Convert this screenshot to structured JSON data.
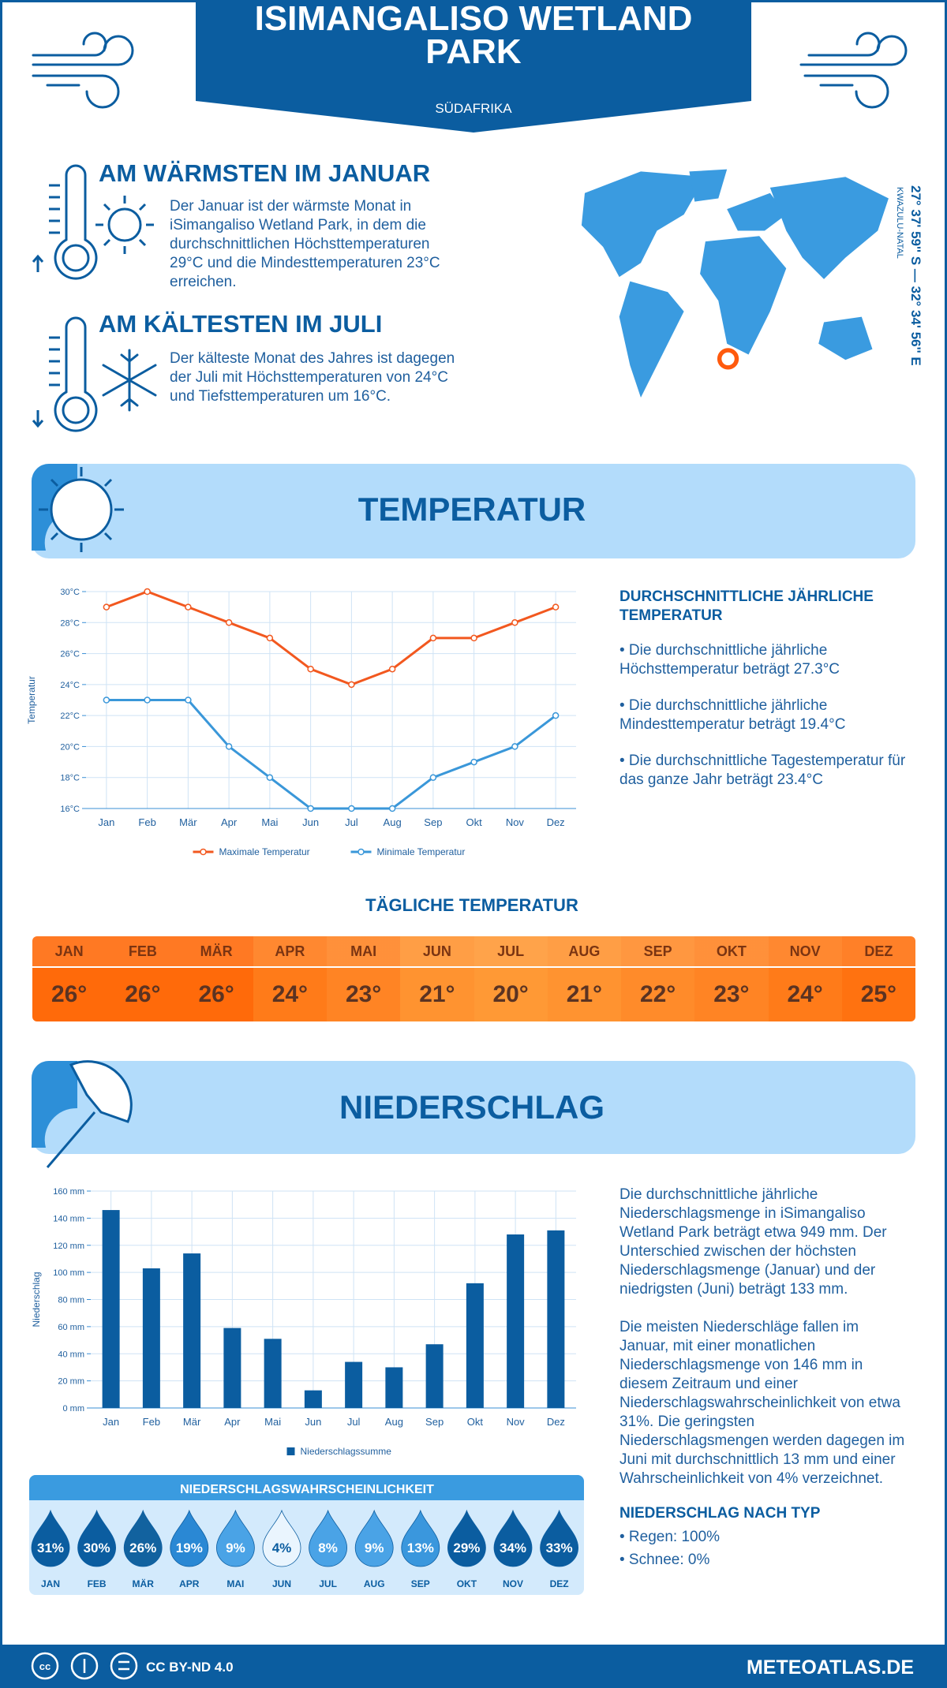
{
  "header": {
    "title": "ISIMANGALISO WETLAND PARK",
    "subtitle": "SÜDAFRIKA"
  },
  "warmest": {
    "title": "AM WÄRMSTEN IM JANUAR",
    "text": "Der Januar ist der wärmste Monat in iSimangaliso Wetland Park, in dem die durchschnittlichen Höchsttemperaturen 29°C und die Mindesttemperaturen 23°C erreichen."
  },
  "coldest": {
    "title": "AM KÄLTESTEN IM JULI",
    "text": "Der kälteste Monat des Jahres ist dagegen der Juli mit Höchsttemperaturen von 24°C und Tiefsttemperaturen um 16°C."
  },
  "location": {
    "coordinates": "27° 37' 59'' S — 32° 34' 56'' E",
    "region": "KWAZULU-NATAL"
  },
  "temperature_section": {
    "title": "TEMPERATUR",
    "annual": {
      "title": "DURCHSCHNITTLICHE JÄHRLICHE TEMPERATUR",
      "items": [
        "• Die durchschnittliche jährliche Höchsttemperatur beträgt 27.3°C",
        "• Die durchschnittliche jährliche Mindesttemperatur beträgt 19.4°C",
        "• Die durchschnittliche Tagestemperatur für das ganze Jahr beträgt 23.4°C"
      ]
    }
  },
  "daily_temperature": {
    "title": "TÄGLICHE TEMPERATUR",
    "months": [
      "JAN",
      "FEB",
      "MÄR",
      "APR",
      "MAI",
      "JUN",
      "JUL",
      "AUG",
      "SEP",
      "OKT",
      "NOV",
      "DEZ"
    ],
    "values": [
      "26°",
      "26°",
      "26°",
      "24°",
      "23°",
      "21°",
      "20°",
      "21°",
      "22°",
      "23°",
      "24°",
      "25°"
    ],
    "colors": [
      "#ff6a0a",
      "#ff6a0a",
      "#ff6a0a",
      "#ff7b19",
      "#ff8424",
      "#ff9330",
      "#ff9935",
      "#ff9330",
      "#ff8b2a",
      "#ff8424",
      "#ff7b19",
      "#ff7210"
    ]
  },
  "precipitation_section": {
    "title": "NIEDERSCHLAG",
    "paragraphs": [
      "Die durchschnittliche jährliche Niederschlagsmenge in iSimangaliso Wetland Park beträgt etwa 949 mm. Der Unterschied zwischen der höchsten Niederschlagsmenge (Januar) und der niedrigsten (Juni) beträgt 133 mm.",
      "Die meisten Niederschläge fallen im Januar, mit einer monatlichen Niederschlagsmenge von 146 mm in diesem Zeitraum und einer Niederschlagswahrscheinlichkeit von etwa 31%. Die geringsten Niederschlagsmengen werden dagegen im Juni mit durchschnittlich 13 mm und einer Wahrscheinlichkeit von 4% verzeichnet."
    ],
    "type_title": "NIEDERSCHLAG NACH TYP",
    "types": [
      "• Regen: 100%",
      "• Schnee: 0%"
    ]
  },
  "probability": {
    "title": "NIEDERSCHLAGSWAHRSCHEINLICHKEIT",
    "months": [
      "JAN",
      "FEB",
      "MÄR",
      "APR",
      "MAI",
      "JUN",
      "JUL",
      "AUG",
      "SEP",
      "OKT",
      "NOV",
      "DEZ"
    ],
    "values": [
      "31%",
      "30%",
      "26%",
      "19%",
      "9%",
      "4%",
      "8%",
      "9%",
      "13%",
      "29%",
      "34%",
      "33%"
    ],
    "colors": [
      "#0b5da0",
      "#0b5da0",
      "#12629f",
      "#2a88d4",
      "#4aa3e6",
      "#eaf5fe",
      "#4aa3e6",
      "#4aa3e6",
      "#3a97dd",
      "#0b5da0",
      "#0b5da0",
      "#0b5da0"
    ],
    "label_colors": [
      "#ffffff",
      "#ffffff",
      "#ffffff",
      "#ffffff",
      "#ffffff",
      "#0b5da0",
      "#ffffff",
      "#ffffff",
      "#ffffff",
      "#ffffff",
      "#ffffff",
      "#ffffff"
    ]
  },
  "footer": {
    "license": "CC BY-ND 4.0",
    "site": "METEOATLAS.DE"
  },
  "chart_data": [
    {
      "type": "line",
      "y_label": "Temperatur",
      "categories": [
        "Jan",
        "Feb",
        "Mär",
        "Apr",
        "Mai",
        "Jun",
        "Jul",
        "Aug",
        "Sep",
        "Okt",
        "Nov",
        "Dez"
      ],
      "series": [
        {
          "name": "Maximale Temperatur",
          "color": "#f2581f",
          "values": [
            29,
            30,
            29,
            28,
            27,
            25,
            24,
            25,
            27,
            27,
            28,
            29
          ]
        },
        {
          "name": "Minimale Temperatur",
          "color": "#3a97d9",
          "values": [
            23,
            23,
            23,
            20,
            18,
            16,
            16,
            16,
            18,
            19,
            20,
            22
          ]
        }
      ],
      "ylim": [
        16,
        30
      ],
      "yticks": [
        {
          "value": 16,
          "label": "16°C"
        },
        {
          "value": 18,
          "label": "18°C"
        },
        {
          "value": 20,
          "label": "20°C"
        },
        {
          "value": 22,
          "label": "22°C"
        },
        {
          "value": 24,
          "label": "24°C"
        },
        {
          "value": 26,
          "label": "26°C"
        },
        {
          "value": 28,
          "label": "28°C"
        },
        {
          "value": 30,
          "label": "30°C"
        }
      ],
      "grid": true,
      "legend": "bottom"
    },
    {
      "type": "bar",
      "y_label": "Niederschlag",
      "categories": [
        "Jan",
        "Feb",
        "Mär",
        "Apr",
        "Mai",
        "Jun",
        "Jul",
        "Aug",
        "Sep",
        "Okt",
        "Nov",
        "Dez"
      ],
      "series": [
        {
          "name": "Niederschlagssumme",
          "color": "#0b5da0",
          "values": [
            146,
            103,
            114,
            59,
            51,
            13,
            34,
            30,
            47,
            92,
            128,
            131
          ]
        }
      ],
      "ylim": [
        0,
        160
      ],
      "yticks": [
        {
          "value": 0,
          "label": "0 mm"
        },
        {
          "value": 20,
          "label": "20 mm"
        },
        {
          "value": 40,
          "label": "40 mm"
        },
        {
          "value": 60,
          "label": "60 mm"
        },
        {
          "value": 80,
          "label": "80 mm"
        },
        {
          "value": 100,
          "label": "100 mm"
        },
        {
          "value": 120,
          "label": "120 mm"
        },
        {
          "value": 140,
          "label": "140 mm"
        },
        {
          "value": 160,
          "label": "160 mm"
        }
      ],
      "grid": true,
      "legend": "bottom"
    }
  ]
}
